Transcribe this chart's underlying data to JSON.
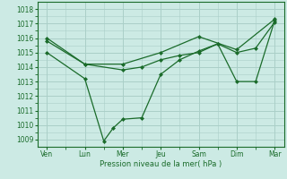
{
  "background_color": "#cceae4",
  "grid_color": "#aacfc8",
  "line_color": "#1a6b2a",
  "xlabel": "Pression niveau de la mer( hPa )",
  "ylim": [
    1008.5,
    1018.5
  ],
  "yticks": [
    1009,
    1010,
    1011,
    1012,
    1013,
    1014,
    1015,
    1016,
    1017,
    1018
  ],
  "xlim": [
    -0.5,
    12.5
  ],
  "xtick_major_pos": [
    0,
    2,
    4,
    6,
    8,
    10,
    12
  ],
  "xtick_major_labels": [
    "Ven",
    "Lun",
    "Mer",
    "Jeu",
    "Sam",
    "Dim",
    "Mar"
  ],
  "series1_x": [
    0,
    2,
    4,
    5,
    6,
    7,
    8,
    9,
    10,
    11,
    12
  ],
  "series1_y": [
    1015.8,
    1014.2,
    1013.8,
    1014.0,
    1014.5,
    1014.8,
    1015.0,
    1015.6,
    1015.0,
    1015.3,
    1017.1
  ],
  "series2_x": [
    0,
    2,
    3,
    3.5,
    4,
    5,
    6,
    7,
    8,
    9,
    10,
    11,
    12
  ],
  "series2_y": [
    1015.0,
    1013.2,
    1008.9,
    1009.8,
    1010.4,
    1010.5,
    1013.5,
    1014.5,
    1015.1,
    1015.6,
    1013.0,
    1013.0,
    1017.2
  ],
  "series3_x": [
    0,
    2,
    4,
    6,
    8,
    10,
    12
  ],
  "series3_y": [
    1016.0,
    1014.2,
    1014.2,
    1015.0,
    1016.1,
    1015.2,
    1017.3
  ]
}
